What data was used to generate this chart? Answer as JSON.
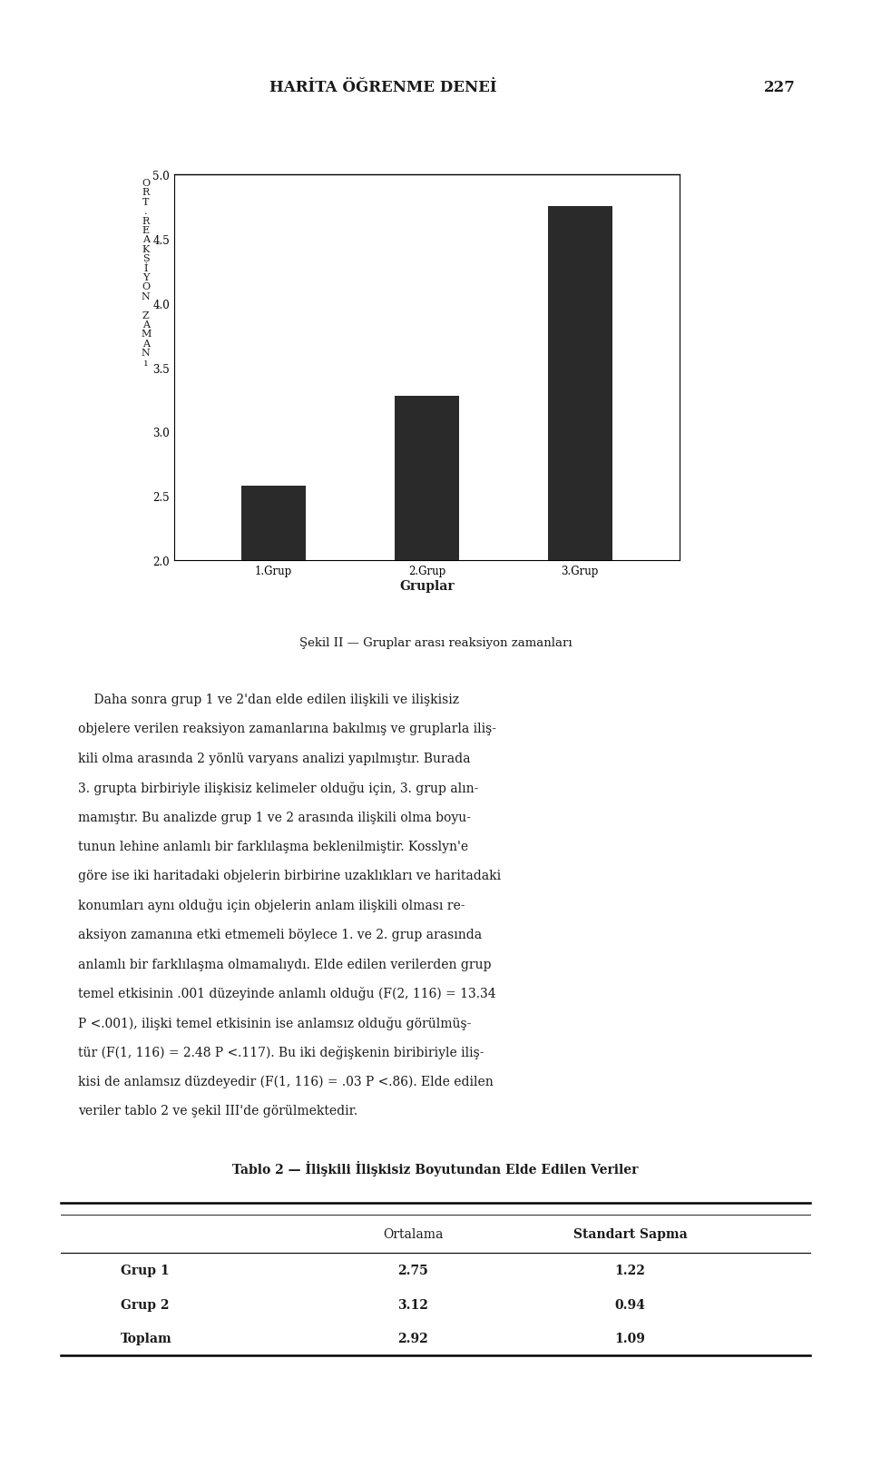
{
  "page_title": "HARİTA ÖĞRENME DENEİ",
  "page_number": "227",
  "chart": {
    "categories": [
      "1.Grup",
      "2.Grup",
      "3.Grup"
    ],
    "values": [
      2.58,
      3.28,
      4.75
    ],
    "bar_color": "#2a2a2a",
    "ylim": [
      2.0,
      5.0
    ],
    "yticks": [
      2.0,
      2.5,
      3.0,
      3.5,
      4.0,
      4.5,
      5.0
    ],
    "xlabel": "Gruplar",
    "ylabel_text": "O\nR\nT\n.\nR\nE\nA\nK\nS\nİ\nY\nO\nN\n \nZ\nA\nM\nA\nN\nı"
  },
  "figure_caption": "Şekil II — Gruplar arası reaksiyon zamanları",
  "paragraph_lines": [
    "    Daha sonra grup 1 ve 2'dan elde edilen ilişkili ve ilişkisiz",
    "objelere verilen reaksiyon zamanlarına bakılmış ve gruplarla iliş-",
    "kili olma arasında 2 yönlü varyans analizi yapılmıştır. Burada",
    "3. grupta birbiriyle ilişkisiz kelimeler olduğu için, 3. grup alın-",
    "mamıştır. Bu analizde grup 1 ve 2 arasında ilişkili olma boyu-",
    "tunun lehine anlamlı bir farklılaşma beklenilmiştir. Kosslyn'e",
    "göre ise iki haritadaki objelerin birbirine uzaklıkları ve haritadaki",
    "konumları aynı olduğu için objelerin anlam ilişkili olması re-",
    "aksiyon zamanına etki etmemeli böylece 1. ve 2. grup arasında",
    "anlamlı bir farklılaşma olmamalıydı. Elde edilen verilerden grup",
    "temel etkisinin .001 düzeyinde anlamlı olduğu (F(2, 116) = 13.34",
    "P <.001), ilişki temel etkisinin ise anlamsız olduğu görülmüş-",
    "tür (F(1, 116) = 2.48 P <.117). Bu iki değişkenin biribiriyle iliş-",
    "kisi de anlamsız düzdeyedir (F(1, 116) = .03 P <.86). Elde edilen",
    "veriler tablo 2 ve şekil III'de görülmektedir."
  ],
  "table_title": "Tablo 2 — İlişkili İlişkisiz Boyutundan Elde Edilen Veriler",
  "table_col_headers": [
    "Ortalama",
    "Standart Sapma"
  ],
  "table_rows": [
    [
      "Grup 1",
      "2.75",
      "1.22"
    ],
    [
      "Grup 2",
      "3.12",
      "0.94"
    ],
    [
      "Toplam",
      "2.92",
      "1.09"
    ]
  ],
  "bg_color": "#ffffff",
  "text_color": "#1a1a1a"
}
